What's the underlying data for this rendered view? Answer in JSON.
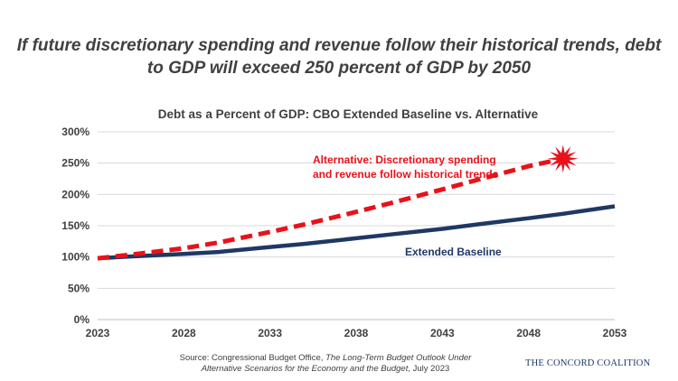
{
  "headline": "If future discretionary spending and revenue follow their historical trends, debt to GDP will exceed 250 percent of GDP by 2050",
  "chart_data": {
    "type": "line",
    "title": "Debt as a Percent of GDP: CBO Extended Baseline vs. Alternative",
    "xlabel": "",
    "ylabel": "",
    "xlim": [
      2023,
      2053
    ],
    "ylim": [
      0,
      300
    ],
    "x_ticks": [
      "2023",
      "2028",
      "2033",
      "2038",
      "2043",
      "2048",
      "2053"
    ],
    "y_ticks": [
      "0%",
      "50%",
      "100%",
      "150%",
      "200%",
      "250%",
      "300%"
    ],
    "grid": true,
    "series": [
      {
        "name": "Extended Baseline",
        "color": "#1f3864",
        "style": "solid",
        "x": [
          2023,
          2025,
          2028,
          2030,
          2033,
          2035,
          2038,
          2040,
          2043,
          2045,
          2048,
          2050,
          2053
        ],
        "y": [
          98,
          101,
          105,
          108,
          116,
          121,
          130,
          136,
          145,
          152,
          162,
          169,
          181
        ]
      },
      {
        "name": "Alternative: Discretionary spending and revenue follow historical trends",
        "color": "#e8121b",
        "style": "dashed",
        "x": [
          2023,
          2025,
          2028,
          2030,
          2033,
          2035,
          2038,
          2040,
          2043,
          2045,
          2048,
          2050
        ],
        "y": [
          98,
          104,
          114,
          123,
          140,
          152,
          172,
          186,
          208,
          223,
          245,
          257
        ]
      }
    ],
    "annotations": {
      "alternative_label_line1": "Alternative: Discretionary spending",
      "alternative_label_line2": "and revenue follow historical trends",
      "baseline_label": "Extended Baseline",
      "burst_at": [
        2050,
        257
      ]
    }
  },
  "source": {
    "prefix": "Source: Congressional Budget Office, ",
    "title_line1": "The Long-Term Budget Outlook Under",
    "title_line2": "Alternative Scenarios for the Economy and the Budget",
    "suffix": ", July 2023"
  },
  "logo_text": "THE CONCORD COALITION"
}
